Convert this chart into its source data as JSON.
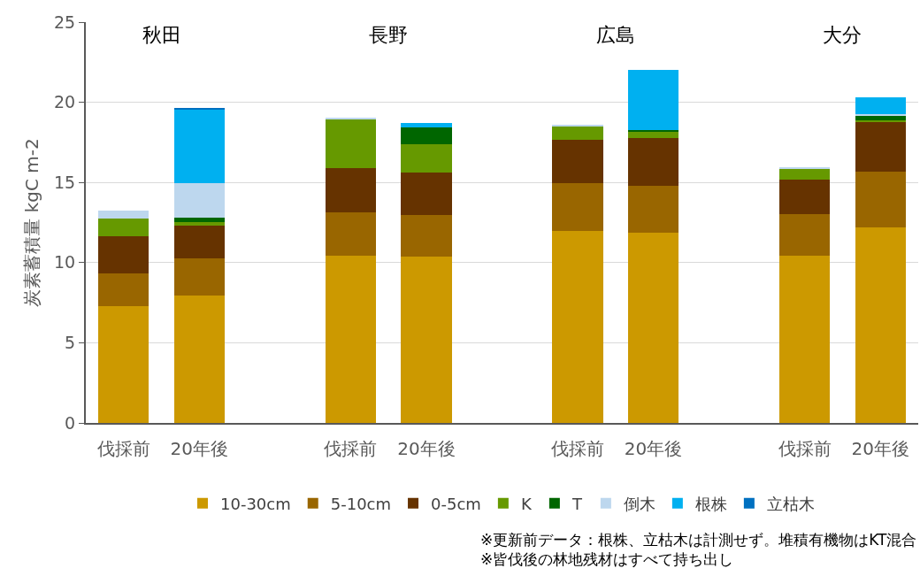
{
  "chart_data": {
    "type": "bar",
    "stacked": true,
    "ylabel": "炭素蓄積量 kgC m-2",
    "categories": [
      "伐採前",
      "20年後",
      null,
      "伐採前",
      "20年後",
      null,
      "伐採前",
      "20年後",
      null,
      "伐採前",
      "20年後"
    ],
    "series": [
      {
        "name": "10-30cm",
        "color": "#cc9900",
        "values": [
          7.3,
          7.94,
          null,
          10.42,
          10.35,
          null,
          11.97,
          11.84,
          null,
          10.42,
          12.19
        ]
      },
      {
        "name": "5-10cm",
        "color": "#996600",
        "values": [
          2.02,
          2.3,
          null,
          2.71,
          2.63,
          null,
          2.97,
          2.96,
          null,
          2.61,
          3.49
        ]
      },
      {
        "name": "0-5cm",
        "color": "#663300",
        "values": [
          2.35,
          2.04,
          null,
          2.79,
          2.66,
          null,
          2.74,
          2.96,
          null,
          2.17,
          3.13
        ]
      },
      {
        "name": "K",
        "color": "#669900",
        "values": [
          1.07,
          0.26,
          null,
          3.05,
          1.73,
          null,
          0.85,
          0.37,
          null,
          0.65,
          0.09
        ]
      },
      {
        "name": "T",
        "color": "#006600",
        "values": [
          0,
          0.27,
          null,
          0,
          1.09,
          null,
          0,
          0.12,
          null,
          0,
          0.27
        ]
      },
      {
        "name": "倒木",
        "color": "#bdd7ee",
        "values": [
          0.51,
          2.13,
          null,
          0.05,
          0,
          null,
          0.05,
          0,
          null,
          0.05,
          0.1
        ]
      },
      {
        "name": "根株",
        "color": "#00b0f0",
        "values": [
          0,
          4.64,
          null,
          0,
          0.24,
          null,
          0,
          3.78,
          null,
          0,
          1.04
        ]
      },
      {
        "name": "立枯木",
        "color": "#0070c0",
        "values": [
          0,
          0.05,
          null,
          0,
          0,
          null,
          0,
          0,
          null,
          0,
          0
        ]
      }
    ],
    "ylim": [
      0,
      25
    ],
    "yticks": [
      0,
      5,
      10,
      15,
      20,
      25
    ],
    "grid": "y",
    "legend": "bottom",
    "annotations": [
      "秋田",
      "長野",
      "広島",
      "大分",
      "※更新前データ：根株、立枯木は計測せず。堆積有機物はKT混合\n※皆伐後の林地残材はすべて持ち出し"
    ]
  }
}
